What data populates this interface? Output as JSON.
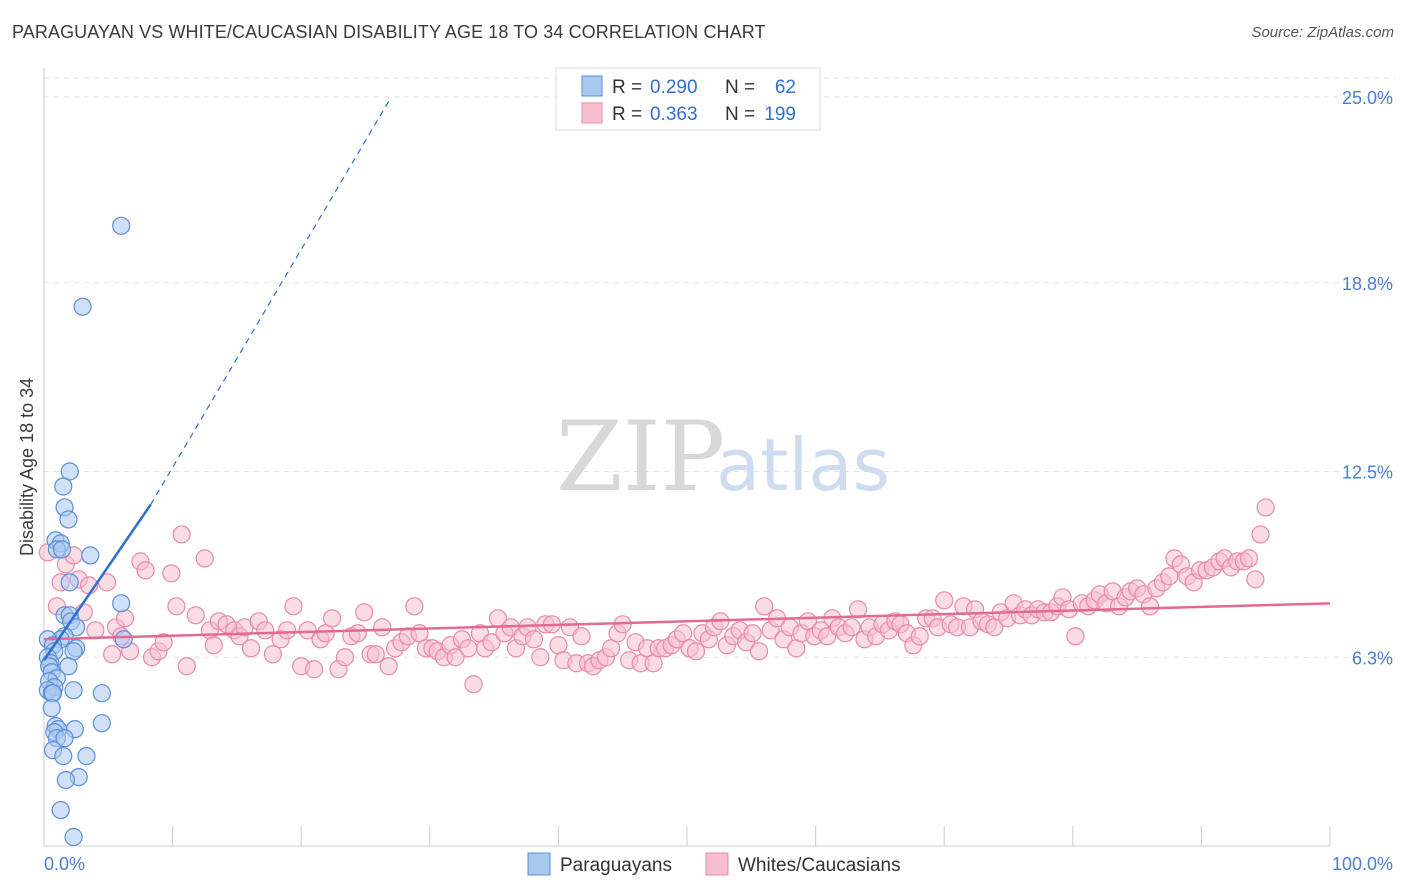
{
  "title": "PARAGUAYAN VS WHITE/CAUCASIAN DISABILITY AGE 18 TO 34 CORRELATION CHART",
  "source": "Source: ZipAtlas.com",
  "watermark": {
    "zip": "ZIP",
    "atlas": "atlas"
  },
  "colors": {
    "blue_fill": "#a9c8f0",
    "blue_stroke": "#5b8fd6",
    "blue_line": "#2f6fd0",
    "pink_fill": "#f6bfd0",
    "pink_stroke": "#e98aa8",
    "pink_line": "#e06a94",
    "tick_label": "#4a7fd0",
    "grid": "#e3e3e3"
  },
  "legend": {
    "rows": [
      {
        "r_label": "R =",
        "r_value": "0.290",
        "n_label": "N =",
        "n_value": "62",
        "color": "blue"
      },
      {
        "r_label": "R =",
        "r_value": "0.363",
        "n_label": "N =",
        "n_value": "199",
        "color": "pink"
      }
    ]
  },
  "chart_data": {
    "type": "scatter",
    "title": "PARAGUAYAN VS WHITE/CAUCASIAN DISABILITY AGE 18 TO 34 CORRELATION CHART",
    "xlabel": "",
    "ylabel": "Disability Age 18 to 34",
    "xlim": [
      0,
      100
    ],
    "ylim": [
      0,
      26
    ],
    "x_tick_labels": [
      "0.0%",
      "100.0%"
    ],
    "y_ticks": [
      6.3,
      12.5,
      18.8,
      25.0
    ],
    "y_tick_labels": [
      "6.3%",
      "12.5%",
      "18.8%",
      "25.0%"
    ],
    "grid": true,
    "legend_position": "bottom-center",
    "series": [
      {
        "name": "Paraguayans",
        "color": "blue",
        "trend": {
          "x": [
            0,
            8.3
          ],
          "y": [
            6.2,
            11.4
          ],
          "dashed_extension": {
            "x": [
              8.3,
              27
            ],
            "y": [
              11.4,
              25.0
            ]
          }
        },
        "points": [
          [
            6,
            20.7
          ],
          [
            3,
            18.0
          ],
          [
            2,
            12.5
          ],
          [
            1.5,
            12.0
          ],
          [
            1.6,
            11.3
          ],
          [
            1.9,
            10.9
          ],
          [
            0.9,
            10.2
          ],
          [
            1.3,
            10.1
          ],
          [
            1.0,
            9.9
          ],
          [
            1.4,
            9.9
          ],
          [
            3.6,
            9.7
          ],
          [
            2.0,
            8.8
          ],
          [
            6.0,
            8.1
          ],
          [
            1.6,
            7.7
          ],
          [
            2.0,
            7.7
          ],
          [
            2.1,
            7.5
          ],
          [
            2.5,
            7.3
          ],
          [
            1.6,
            7.0
          ],
          [
            1.3,
            6.9
          ],
          [
            0.3,
            6.9
          ],
          [
            0.7,
            6.7
          ],
          [
            2.5,
            6.6
          ],
          [
            2.3,
            6.5
          ],
          [
            0.8,
            6.5
          ],
          [
            6.2,
            6.9
          ],
          [
            0.3,
            6.3
          ],
          [
            0.5,
            6.1
          ],
          [
            0.4,
            6.0
          ],
          [
            1.9,
            6.0
          ],
          [
            0.6,
            5.8
          ],
          [
            1.0,
            5.6
          ],
          [
            0.4,
            5.5
          ],
          [
            0.8,
            5.3
          ],
          [
            0.3,
            5.2
          ],
          [
            0.6,
            5.1
          ],
          [
            0.7,
            5.1
          ],
          [
            2.3,
            5.2
          ],
          [
            4.5,
            5.1
          ],
          [
            0.6,
            4.6
          ],
          [
            0.9,
            4.0
          ],
          [
            1.1,
            3.9
          ],
          [
            2.4,
            3.9
          ],
          [
            0.8,
            3.8
          ],
          [
            1.0,
            3.6
          ],
          [
            1.6,
            3.6
          ],
          [
            4.5,
            4.1
          ],
          [
            0.7,
            3.2
          ],
          [
            1.5,
            3.0
          ],
          [
            3.3,
            3.0
          ],
          [
            2.7,
            2.3
          ],
          [
            1.7,
            2.2
          ],
          [
            1.3,
            1.2
          ],
          [
            2.3,
            0.3
          ]
        ]
      },
      {
        "name": "Whites/Caucasians",
        "color": "pink",
        "trend": {
          "x": [
            0,
            100
          ],
          "y": [
            6.9,
            8.1
          ]
        },
        "points": [
          [
            0.3,
            9.8
          ],
          [
            1.0,
            8.0
          ],
          [
            1.3,
            8.8
          ],
          [
            1.7,
            9.4
          ],
          [
            2.3,
            9.7
          ],
          [
            2.7,
            8.9
          ],
          [
            3.1,
            7.8
          ],
          [
            3.5,
            8.7
          ],
          [
            4.0,
            7.2
          ],
          [
            4.9,
            8.8
          ],
          [
            5.3,
            6.4
          ],
          [
            5.6,
            7.3
          ],
          [
            6.0,
            7.0
          ],
          [
            6.3,
            7.6
          ],
          [
            6.7,
            6.5
          ],
          [
            7.5,
            9.5
          ],
          [
            7.9,
            9.2
          ],
          [
            8.4,
            6.3
          ],
          [
            8.9,
            6.5
          ],
          [
            9.3,
            6.8
          ],
          [
            9.9,
            9.1
          ],
          [
            10.3,
            8.0
          ],
          [
            10.7,
            10.4
          ],
          [
            11.1,
            6.0
          ],
          [
            11.8,
            7.7
          ],
          [
            12.5,
            9.6
          ],
          [
            12.9,
            7.2
          ],
          [
            13.2,
            6.7
          ],
          [
            13.6,
            7.5
          ],
          [
            14.2,
            7.4
          ],
          [
            14.8,
            7.2
          ],
          [
            15.2,
            7.0
          ],
          [
            15.6,
            7.3
          ],
          [
            16.1,
            6.6
          ],
          [
            16.7,
            7.5
          ],
          [
            17.2,
            7.2
          ],
          [
            17.8,
            6.4
          ],
          [
            18.4,
            6.9
          ],
          [
            18.9,
            7.2
          ],
          [
            19.4,
            8.0
          ],
          [
            20.0,
            6.0
          ],
          [
            20.5,
            7.2
          ],
          [
            21.0,
            5.9
          ],
          [
            21.5,
            6.9
          ],
          [
            21.9,
            7.1
          ],
          [
            22.4,
            7.6
          ],
          [
            22.9,
            5.9
          ],
          [
            23.4,
            6.3
          ],
          [
            23.9,
            7.0
          ],
          [
            24.4,
            7.1
          ],
          [
            24.9,
            7.8
          ],
          [
            25.4,
            6.4
          ],
          [
            25.8,
            6.4
          ],
          [
            26.3,
            7.3
          ],
          [
            26.8,
            6.0
          ],
          [
            27.3,
            6.6
          ],
          [
            27.8,
            6.8
          ],
          [
            28.3,
            7.0
          ],
          [
            28.8,
            8.0
          ],
          [
            29.2,
            7.1
          ],
          [
            29.7,
            6.6
          ],
          [
            30.2,
            6.6
          ],
          [
            30.6,
            6.5
          ],
          [
            31.1,
            6.3
          ],
          [
            31.6,
            6.7
          ],
          [
            32.0,
            6.3
          ],
          [
            32.5,
            6.9
          ],
          [
            33.0,
            6.6
          ],
          [
            33.4,
            5.4
          ],
          [
            33.9,
            7.1
          ],
          [
            34.3,
            6.6
          ],
          [
            34.8,
            6.8
          ],
          [
            35.3,
            7.6
          ],
          [
            35.8,
            7.1
          ],
          [
            36.3,
            7.3
          ],
          [
            36.7,
            6.6
          ],
          [
            37.2,
            7.0
          ],
          [
            37.6,
            7.3
          ],
          [
            38.1,
            6.9
          ],
          [
            38.6,
            6.3
          ],
          [
            39.0,
            7.4
          ],
          [
            39.5,
            7.4
          ],
          [
            40.0,
            6.7
          ],
          [
            40.4,
            6.2
          ],
          [
            40.9,
            7.3
          ],
          [
            41.4,
            6.1
          ],
          [
            41.8,
            7.0
          ],
          [
            42.3,
            6.1
          ],
          [
            42.7,
            6.0
          ],
          [
            43.2,
            6.2
          ],
          [
            43.7,
            6.3
          ],
          [
            44.1,
            6.6
          ],
          [
            44.6,
            7.1
          ],
          [
            45.0,
            7.4
          ],
          [
            45.5,
            6.2
          ],
          [
            46.0,
            6.8
          ],
          [
            46.4,
            6.1
          ],
          [
            46.9,
            6.6
          ],
          [
            47.4,
            6.1
          ],
          [
            47.8,
            6.6
          ],
          [
            48.3,
            6.6
          ],
          [
            48.8,
            6.7
          ],
          [
            49.2,
            6.9
          ],
          [
            49.7,
            7.1
          ],
          [
            50.2,
            6.6
          ],
          [
            50.7,
            6.5
          ],
          [
            51.2,
            7.1
          ],
          [
            51.7,
            6.9
          ],
          [
            52.1,
            7.3
          ],
          [
            52.6,
            7.5
          ],
          [
            53.1,
            6.7
          ],
          [
            53.6,
            7.0
          ],
          [
            54.1,
            7.2
          ],
          [
            54.6,
            6.8
          ],
          [
            55.1,
            7.1
          ],
          [
            55.6,
            6.5
          ],
          [
            56.0,
            8.0
          ],
          [
            56.5,
            7.2
          ],
          [
            57.0,
            7.6
          ],
          [
            57.5,
            6.9
          ],
          [
            58.0,
            7.3
          ],
          [
            58.5,
            6.6
          ],
          [
            58.9,
            7.1
          ],
          [
            59.4,
            7.5
          ],
          [
            59.9,
            7.0
          ],
          [
            60.4,
            7.2
          ],
          [
            60.9,
            7.0
          ],
          [
            61.3,
            7.6
          ],
          [
            61.8,
            7.3
          ],
          [
            62.3,
            7.1
          ],
          [
            62.8,
            7.3
          ],
          [
            63.3,
            7.9
          ],
          [
            63.8,
            6.9
          ],
          [
            64.2,
            7.3
          ],
          [
            64.7,
            7.0
          ],
          [
            65.2,
            7.4
          ],
          [
            65.7,
            7.2
          ],
          [
            66.2,
            7.5
          ],
          [
            66.6,
            7.4
          ],
          [
            67.1,
            7.1
          ],
          [
            67.6,
            6.7
          ],
          [
            68.1,
            7.0
          ],
          [
            68.6,
            7.6
          ],
          [
            69.1,
            7.6
          ],
          [
            69.5,
            7.3
          ],
          [
            70.0,
            8.2
          ],
          [
            70.5,
            7.4
          ],
          [
            71.0,
            7.3
          ],
          [
            71.5,
            8.0
          ],
          [
            72.0,
            7.3
          ],
          [
            72.4,
            7.9
          ],
          [
            72.9,
            7.5
          ],
          [
            73.4,
            7.4
          ],
          [
            73.9,
            7.3
          ],
          [
            74.4,
            7.8
          ],
          [
            74.9,
            7.6
          ],
          [
            75.4,
            8.1
          ],
          [
            75.9,
            7.7
          ],
          [
            76.3,
            7.9
          ],
          [
            76.8,
            7.7
          ],
          [
            77.3,
            7.9
          ],
          [
            77.8,
            7.8
          ],
          [
            78.3,
            7.8
          ],
          [
            78.8,
            8.0
          ],
          [
            79.2,
            8.3
          ],
          [
            79.7,
            7.9
          ],
          [
            80.2,
            7.0
          ],
          [
            80.7,
            8.1
          ],
          [
            81.2,
            8.0
          ],
          [
            81.7,
            8.2
          ],
          [
            82.1,
            8.4
          ],
          [
            82.6,
            8.1
          ],
          [
            83.1,
            8.5
          ],
          [
            83.6,
            8.0
          ],
          [
            84.1,
            8.3
          ],
          [
            84.5,
            8.5
          ],
          [
            85.0,
            8.6
          ],
          [
            85.5,
            8.4
          ],
          [
            86.0,
            8.0
          ],
          [
            86.5,
            8.6
          ],
          [
            87.0,
            8.8
          ],
          [
            87.5,
            9.0
          ],
          [
            87.9,
            9.6
          ],
          [
            88.4,
            9.4
          ],
          [
            88.9,
            9.0
          ],
          [
            89.4,
            8.8
          ],
          [
            89.9,
            9.2
          ],
          [
            90.4,
            9.2
          ],
          [
            90.9,
            9.3
          ],
          [
            91.4,
            9.5
          ],
          [
            91.8,
            9.6
          ],
          [
            92.3,
            9.3
          ],
          [
            92.8,
            9.5
          ],
          [
            93.3,
            9.5
          ],
          [
            93.7,
            9.6
          ],
          [
            94.2,
            8.9
          ],
          [
            94.6,
            10.4
          ],
          [
            95.0,
            11.3
          ]
        ]
      }
    ]
  }
}
